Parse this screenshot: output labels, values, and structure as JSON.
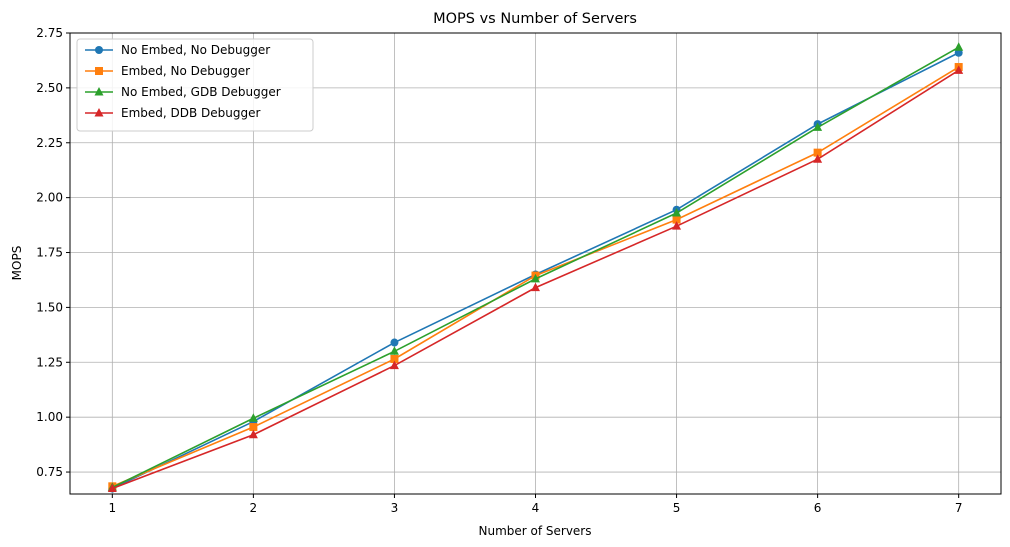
{
  "chart_data": {
    "type": "line",
    "title": "MOPS vs Number of Servers",
    "xlabel": "Number of Servers",
    "ylabel": "MOPS",
    "x": [
      1,
      2,
      3,
      4,
      5,
      6,
      7
    ],
    "xlim": [
      0.7,
      7.3
    ],
    "ylim": [
      0.65,
      2.75
    ],
    "yticks": [
      "0.75",
      "1.00",
      "1.25",
      "1.50",
      "1.75",
      "2.00",
      "2.25",
      "2.50",
      "2.75"
    ],
    "xticks": [
      "1",
      "2",
      "3",
      "4",
      "5",
      "6",
      "7"
    ],
    "grid": true,
    "legend_position": "top-left",
    "series": [
      {
        "name": "No Embed, No Debugger",
        "color": "#1f77b4",
        "marker": "circle",
        "values": [
          0.675,
          0.98,
          1.34,
          1.65,
          1.945,
          2.335,
          2.66
        ]
      },
      {
        "name": "Embed, No Debugger",
        "color": "#ff7f0e",
        "marker": "square",
        "values": [
          0.685,
          0.955,
          1.265,
          1.645,
          1.9,
          2.205,
          2.595
        ]
      },
      {
        "name": "No Embed, GDB Debugger",
        "color": "#2ca02c",
        "marker": "triangle",
        "values": [
          0.68,
          0.995,
          1.3,
          1.63,
          1.93,
          2.32,
          2.685
        ]
      },
      {
        "name": "Embed, DDB Debugger",
        "color": "#d62728",
        "marker": "triangle",
        "values": [
          0.675,
          0.92,
          1.235,
          1.59,
          1.87,
          2.175,
          2.58
        ]
      }
    ]
  }
}
